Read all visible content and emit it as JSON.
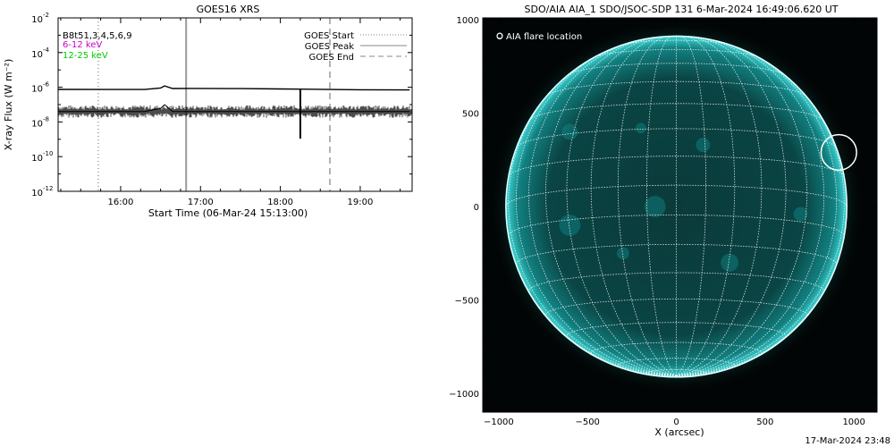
{
  "left_chart": {
    "title": "GOES16 XRS",
    "ylabel": "X-ray Flux (W m⁻²)",
    "xlabel": "Start Time (06-Mar-24 15:13:00)",
    "yticks": [
      {
        "value": -2,
        "label": "10",
        "exp": "-2"
      },
      {
        "value": -4,
        "label": "10",
        "exp": "-4"
      },
      {
        "value": -6,
        "label": "10",
        "exp": "-6"
      },
      {
        "value": -8,
        "label": "10",
        "exp": "-8"
      },
      {
        "value": -10,
        "label": "10",
        "exp": "-10"
      },
      {
        "value": -12,
        "label": "10",
        "exp": "-12"
      }
    ],
    "xticks": [
      {
        "value": 16,
        "label": "16:00"
      },
      {
        "value": 17,
        "label": "17:00"
      },
      {
        "value": 18,
        "label": "18:00"
      },
      {
        "value": 19,
        "label": "19:00"
      }
    ],
    "legend_left": [
      {
        "text": "B8t51,3,4,5,6,9",
        "color": "#000000"
      },
      {
        "text": "6-12 keV",
        "color": "#cc00cc"
      },
      {
        "text": "12-25 keV",
        "color": "#00cc00"
      }
    ],
    "legend_right": [
      {
        "text": "GOES Start",
        "style": "dotted"
      },
      {
        "text": "GOES Peak",
        "style": "solid"
      },
      {
        "text": "GOES End",
        "style": "dashed"
      }
    ]
  },
  "right_image": {
    "title": "SDO/AIA AIA_1 SDO/JSOC-SDP 131  6-Mar-2024 16:49:06.620 UT",
    "xlabel": "X (arcsec)",
    "legend": "O AIA flare location",
    "xticks": [
      {
        "value": -1000,
        "label": "−1000"
      },
      {
        "value": -500,
        "label": "−500"
      },
      {
        "value": 0,
        "label": "0"
      },
      {
        "value": 500,
        "label": "500"
      },
      {
        "value": 1000,
        "label": "1000"
      }
    ],
    "yticks": [
      {
        "value": 1000,
        "label": "1000"
      },
      {
        "value": 500,
        "label": "500"
      },
      {
        "value": 0,
        "label": "0"
      },
      {
        "value": -500,
        "label": "−500"
      },
      {
        "value": -1000,
        "label": "−1000"
      }
    ]
  },
  "footer": {
    "timestamp": "17-Mar-2024 23:48"
  },
  "chart_data": [
    {
      "type": "line",
      "title": "GOES16 XRS",
      "xlabel": "Start Time (06-Mar-24 15:13:00)",
      "ylabel": "X-ray Flux (W m⁻²)",
      "yscale": "log",
      "xlim": [
        15.217,
        19.65
      ],
      "ylim": [
        1e-12,
        0.01
      ],
      "series": [
        {
          "values_x": [
            15.22,
            15.8,
            16.3,
            16.5,
            16.55,
            16.65,
            16.9,
            17.5,
            18.0,
            18.25,
            18.5,
            19.0,
            19.62
          ],
          "values_y": [
            7.5e-07,
            7.4e-07,
            7.4e-07,
            9e-07,
            1.2e-06,
            8.5e-07,
            8.6e-07,
            8.4e-07,
            8e-07,
            7.8e-07,
            7.6e-07,
            7.2e-07,
            7e-07
          ]
        },
        {
          "values_x": [
            15.22,
            15.8,
            16.3,
            16.5,
            16.55,
            16.65,
            16.9,
            17.5,
            18.0,
            18.25,
            18.5,
            19.0,
            19.62
          ],
          "values_y": [
            4e-08,
            4e-08,
            4e-08,
            6e-08,
            1e-07,
            4e-08,
            4e-08,
            4e-08,
            4e-08,
            4e-08,
            4e-08,
            4e-08,
            4e-08
          ]
        }
      ],
      "markers": [
        {
          "name": "GOES Start",
          "x": 15.72,
          "style": "dotted"
        },
        {
          "name": "GOES Peak",
          "x": 16.82,
          "style": "solid"
        },
        {
          "name": "GOES End",
          "x": 18.62,
          "style": "dashed"
        }
      ],
      "spike": {
        "x": 18.25,
        "y_from": 7.8e-07,
        "y_to": 1.1e-09
      }
    },
    {
      "type": "image",
      "title": "SDO/AIA AIA_1 SDO/JSOC-SDP 131  6-Mar-2024 16:49:06.620 UT",
      "xlabel": "X (arcsec)",
      "xlim": [
        -1090,
        1130
      ],
      "ylim": [
        -1100,
        1010
      ],
      "sun_radius": 960,
      "flare_location": {
        "x": 915,
        "y": 290,
        "radius": 100
      },
      "colors": {
        "background": "#020505",
        "disk": "#0a3838",
        "bright": "#00b0b0",
        "limb": "#5fe0e0"
      }
    }
  ]
}
